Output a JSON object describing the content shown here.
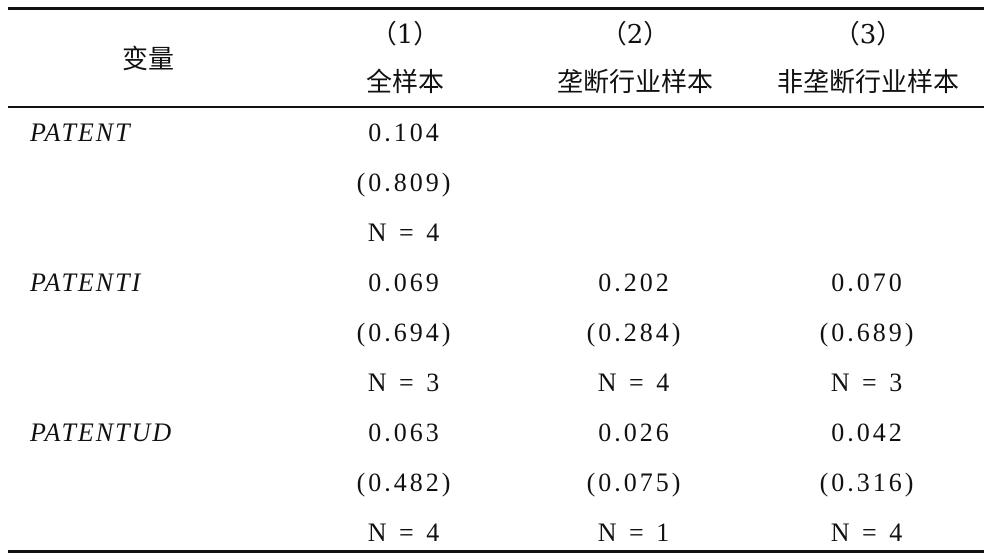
{
  "table": {
    "header": {
      "variable": "变量",
      "columns": [
        {
          "number": "（1）",
          "name": "全样本"
        },
        {
          "number": "（2）",
          "name": "垄断行业样本"
        },
        {
          "number": "（3）",
          "name": "非垄断行业样本"
        }
      ]
    },
    "rows": [
      {
        "variable": "PATENT",
        "columns": [
          {
            "coef": "0.104",
            "se": "(0.809)",
            "n": "N = 4"
          }
        ]
      },
      {
        "variable": "PATENTI",
        "columns": [
          {
            "coef": "0.069",
            "se": "(0.694)",
            "n": "N = 3"
          },
          {
            "coef": "0.202",
            "se": "(0.284)",
            "n": "N = 4"
          },
          {
            "coef": "0.070",
            "se": "(0.689)",
            "n": "N = 3"
          }
        ]
      },
      {
        "variable": "PATENTUD",
        "columns": [
          {
            "coef": "0.063",
            "se": "(0.482)",
            "n": "N = 4"
          },
          {
            "coef": "0.026",
            "se": "(0.075)",
            "n": "N = 1"
          },
          {
            "coef": "0.042",
            "se": "(0.316)",
            "n": "N = 4"
          }
        ]
      }
    ]
  }
}
